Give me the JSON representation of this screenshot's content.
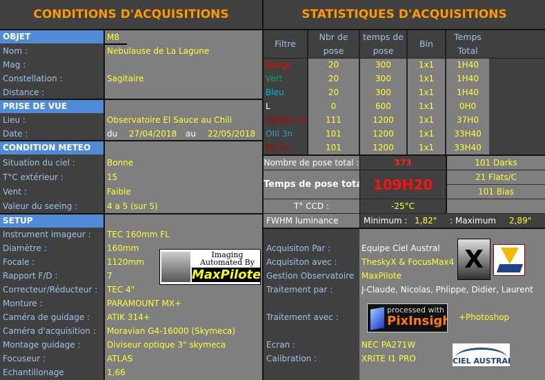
{
  "left": {
    "title": "CONDITIONS D'ACQUISITIONS",
    "objet": {
      "header": "OBJET",
      "value": "M8",
      "rows": [
        {
          "label": "Nom :",
          "value": "Nebulause de La Lagune"
        },
        {
          "label": "Mag :",
          "value": ""
        },
        {
          "label": "Constellation :",
          "value": "Sagitaire"
        },
        {
          "label": "Distance :",
          "value": ""
        }
      ]
    },
    "prise": {
      "header": "PRISE DE VUE",
      "lieu_label": "Lieu :",
      "lieu": "Observatoire El Sauce au Chili",
      "date_label": "Date :",
      "du": "du",
      "date_from": "27/04/2018",
      "au": "au",
      "date_to": "22/05/2018"
    },
    "meteo": {
      "header": "CONDITION METEO",
      "rows": [
        {
          "label": "Situation du ciel  :",
          "value": "Bonne"
        },
        {
          "label": "T°C extérieur :",
          "value": "15"
        },
        {
          "label": "Vent :",
          "value": "Faible"
        },
        {
          "label": "Valeur du seeing  :",
          "value": "4 a 5   (sur 5)"
        }
      ]
    },
    "setup": {
      "header": "SETUP",
      "rows": [
        {
          "label": "Instrument imageur :",
          "value": "TEC 160mm FL"
        },
        {
          "label": "Diamètre :",
          "value": "160mm"
        },
        {
          "label": "Focale :",
          "value": "1120mm"
        },
        {
          "label": "Rapport F/D :",
          "value": "7"
        },
        {
          "label": "Correcteur/Réducteur :",
          "value": "TEC 4\""
        },
        {
          "label": "Monture :",
          "value": "PARAMOUNT MX+"
        },
        {
          "label": "Caméra de guidage :",
          "value": "ATIK 314+"
        },
        {
          "label": "Caméra d'acquisition :",
          "value": "Moravian G4-16000 (Skymeca)"
        },
        {
          "label": "Montage guidage :",
          "value": "Diviseur optique 3\" skymeca"
        },
        {
          "label": "Focuseur :",
          "value": "ATLAS"
        },
        {
          "label": "Echantillonage",
          "value": "1,66"
        }
      ]
    },
    "maxpilote_logo": {
      "line1": "Imaging",
      "line2": "Automated By",
      "brand": "MaxPilote"
    }
  },
  "right": {
    "title": "STATISTIQUES D'ACQUISITIONS",
    "columns": [
      "Filtre",
      "Nbr de pose",
      "temps de pose",
      "Bin",
      "Temps Total"
    ],
    "filters": [
      {
        "name": "Rouge",
        "color": "#ff0000",
        "n": "20",
        "t": "300",
        "bin": "1x1",
        "total": "1H40"
      },
      {
        "name": "Vert",
        "color": "#00b050",
        "n": "20",
        "t": "300",
        "bin": "1x1",
        "total": "1H40"
      },
      {
        "name": "Bleu",
        "color": "#00b0f0",
        "n": "20",
        "t": "300",
        "bin": "1x1",
        "total": "1H40"
      },
      {
        "name": "L",
        "color": "#ffffff",
        "n": "0",
        "t": "600",
        "bin": "1x1",
        "total": "0H0"
      },
      {
        "name": "Halpha 3n",
        "color": "#c00000",
        "n": "111",
        "t": "1200",
        "bin": "1x1",
        "total": "37H0"
      },
      {
        "name": "OIII 3n",
        "color": "#31a0c0",
        "n": "101",
        "t": "1200",
        "bin": "1x1",
        "total": "33H40"
      },
      {
        "name": "SII 3n",
        "color": "#c00000",
        "n": "101",
        "t": "1200",
        "bin": "1x1",
        "total": "33H40"
      }
    ],
    "total_poses_label": "Nombre de pose total :",
    "total_poses": "373",
    "darks": "101 Darks",
    "total_time_label": "Temps de pose total",
    "total_time": "109H20",
    "flats": "21 Flats/C",
    "bias": "101 Bias",
    "ccd_label": "T° CCD :",
    "ccd": "-25°C",
    "fwhm_label": "FWHM luminance",
    "min_label": "Minimum :",
    "min": "1,82\"",
    "max_label": "Maximum :",
    "max": "2,89\"",
    "credits": [
      {
        "label": "Acquisiton Par :",
        "value": "Equipe Ciel Austral",
        "white": true
      },
      {
        "label": "Acquisiton avec :",
        "value": "TheskyX  & FocusMax4"
      },
      {
        "label": "Gestion Observatoire",
        "value": "MaxPilote"
      },
      {
        "label": "Traitement par :",
        "value": "J-Claude, Nicolas, Phlippe, Didier, Laurent",
        "white": true
      }
    ],
    "traitement_label": "Traitement avec :",
    "pixinsight": {
      "line1": "processed with",
      "brand": "PixInsight"
    },
    "photoshop": "+Photoshop",
    "ecran_label": "Ecran :",
    "ecran": "NEC PA271W",
    "calib_label": "Calibration :",
    "calib": "XRITE I1 PRO",
    "ciel_logo": "CIEL AUSTRAL"
  }
}
